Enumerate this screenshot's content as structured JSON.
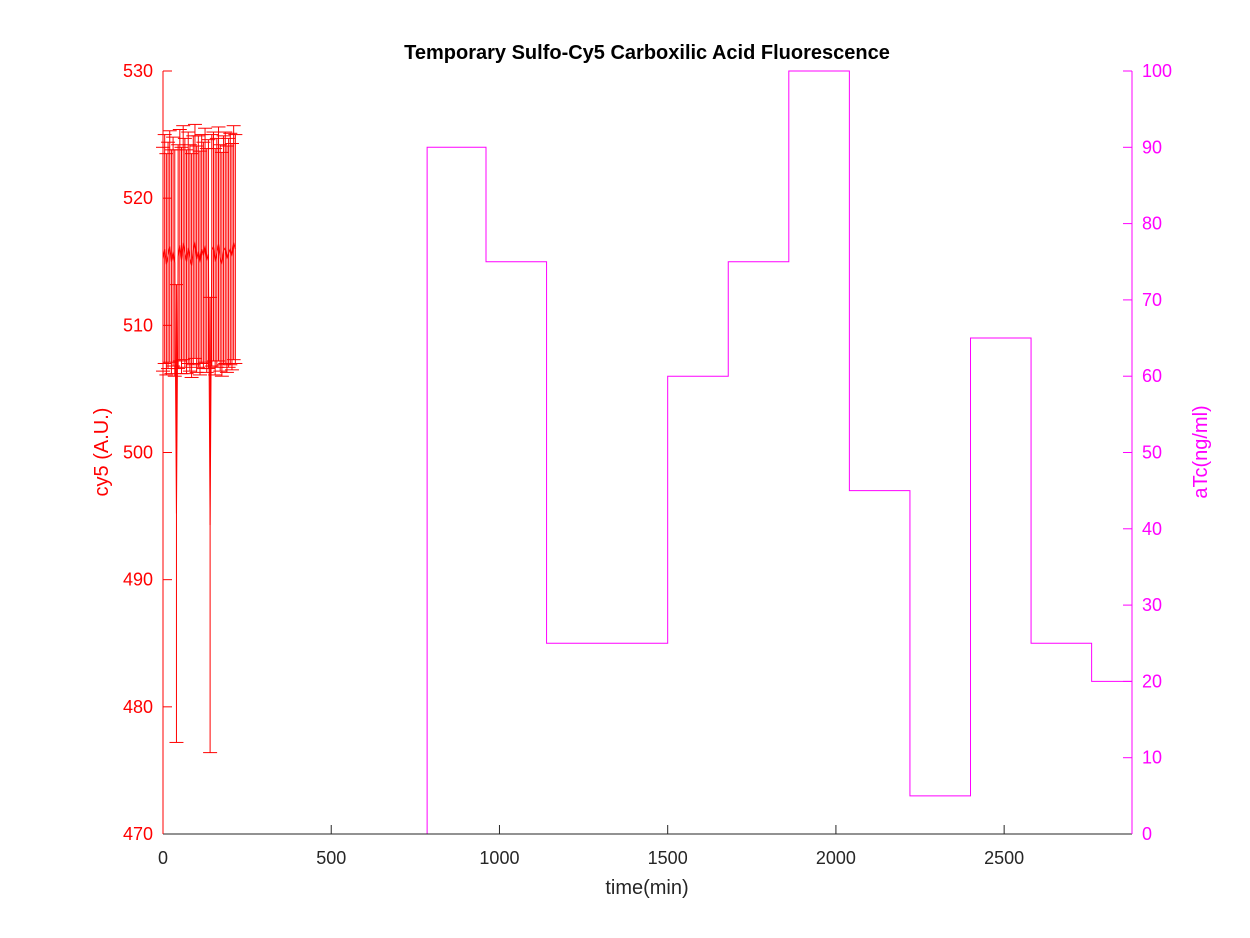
{
  "chart_data": {
    "type": "line",
    "title": "Temporary Sulfo-Cy5 Carboxilic Acid Fluorescence",
    "xlabel": "time(min)",
    "ylabel_left": "cy5 (A.U.)",
    "ylabel_right": "aTc(ng/ml)",
    "xlim": [
      0,
      2880
    ],
    "ylim_left": [
      470,
      530
    ],
    "ylim_right": [
      0,
      100
    ],
    "x_ticks": [
      0,
      500,
      1000,
      1500,
      2000,
      2500
    ],
    "y_left_ticks": [
      470,
      480,
      490,
      500,
      510,
      520,
      530
    ],
    "y_right_ticks": [
      0,
      10,
      20,
      30,
      40,
      50,
      60,
      70,
      80,
      90,
      100
    ],
    "grid": false,
    "colors": {
      "left_axis": "#ff0000",
      "right_axis": "#ff00ff",
      "xaxis": "#262626",
      "title": "#000000"
    },
    "series": [
      {
        "axis": "left",
        "style": "errorbar-line",
        "color": "#ff0000",
        "x": [
          0,
          5,
          10,
          15,
          20,
          25,
          30,
          35,
          40,
          45,
          50,
          55,
          60,
          65,
          70,
          75,
          80,
          85,
          90,
          95,
          100,
          105,
          110,
          115,
          120,
          125,
          130,
          135,
          140,
          145,
          150,
          155,
          160,
          165,
          170,
          175,
          180,
          185,
          190,
          195,
          200,
          205,
          210,
          215
        ],
        "y": [
          515.2,
          516.0,
          514.8,
          515.5,
          516.2,
          515.0,
          515.8,
          514.9,
          495.2,
          515.4,
          516.3,
          515.1,
          516.5,
          515.7,
          515.0,
          516.1,
          515.3,
          514.7,
          515.9,
          516.6,
          515.2,
          515.8,
          514.9,
          516.0,
          515.5,
          516.3,
          515.1,
          515.6,
          494.3,
          515.9,
          516.2,
          515.0,
          515.7,
          516.4,
          515.3,
          514.8,
          515.9,
          516.1,
          515.2,
          515.7,
          516.0,
          515.4,
          516.5,
          516.0
        ],
        "err": [
          8.8,
          9.0,
          8.7,
          8.9,
          9.1,
          8.8,
          9.0,
          8.9,
          18.0,
          8.8,
          9.1,
          8.9,
          9.2,
          9.0,
          8.8,
          9.1,
          8.9,
          8.8,
          9.0,
          9.2,
          8.9,
          9.1,
          8.8,
          9.0,
          8.9,
          9.2,
          8.8,
          9.0,
          17.9,
          9.1,
          9.0,
          8.9,
          9.0,
          9.2,
          8.9,
          8.8,
          9.0,
          9.1,
          8.9,
          9.0,
          9.1,
          8.9,
          9.2,
          9.0
        ]
      },
      {
        "axis": "right",
        "style": "step",
        "color": "#ff00ff",
        "x": [
          0,
          785,
          960,
          1140,
          1500,
          1680,
          1860,
          2040,
          2220,
          2400,
          2580,
          2760,
          2880
        ],
        "y": [
          0,
          90,
          75,
          25,
          60,
          75,
          100,
          45,
          5,
          65,
          25,
          20,
          20
        ]
      }
    ]
  }
}
